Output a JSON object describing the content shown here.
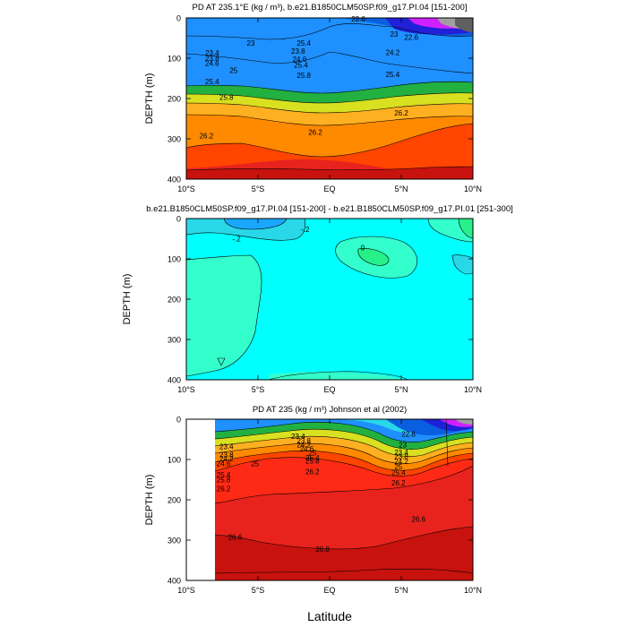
{
  "figure": {
    "xlabel": "Latitude",
    "colors": {
      "zone_a": "#1e90ff",
      "zone_b": "#ff4500",
      "zone_c": "#e8231d",
      "zone_d": "#c8120e",
      "zone_e": "#00ffff",
      "zone_f": "#33ffcc",
      "zone_g": "#26f08a"
    }
  },
  "chart_data": [
    {
      "type": "heatmap",
      "title": "PD AT 235.1°E (kg / m³), b.e21.B1850CLM50SP.f09_g17.PI.04 [151-200]",
      "ylabel": "DEPTH (m)",
      "xlim": [
        -10,
        10
      ],
      "ylim": [
        400,
        0
      ],
      "x_ticks": [
        -10,
        -5,
        0,
        5,
        10
      ],
      "x_tick_labels": [
        "10°S",
        "5°S",
        "EQ",
        "5°N",
        "10°N"
      ],
      "y_ticks": [
        0,
        100,
        200,
        300,
        400
      ],
      "y_tick_labels": [
        "0",
        "100",
        "200",
        "300",
        "400"
      ],
      "contour_labels": [
        {
          "x": -5.5,
          "y": 62,
          "text": "23"
        },
        {
          "x": -8.2,
          "y": 87,
          "text": "23.4"
        },
        {
          "x": -8.2,
          "y": 100,
          "text": "23.8"
        },
        {
          "x": -8.2,
          "y": 112,
          "text": "24.6"
        },
        {
          "x": -6.7,
          "y": 130,
          "text": "25"
        },
        {
          "x": -8.2,
          "y": 158,
          "text": "25.4"
        },
        {
          "x": -7.2,
          "y": 197,
          "text": "25.8"
        },
        {
          "x": -1.8,
          "y": 62,
          "text": "25.4"
        },
        {
          "x": -2.2,
          "y": 82,
          "text": "23.8"
        },
        {
          "x": -2.1,
          "y": 102,
          "text": "24.6"
        },
        {
          "x": -2.0,
          "y": 117,
          "text": "25.4"
        },
        {
          "x": -1.8,
          "y": 142,
          "text": "25.8"
        },
        {
          "x": 4.4,
          "y": 85,
          "text": "24.2"
        },
        {
          "x": 4.4,
          "y": 140,
          "text": "25.4"
        },
        {
          "x": 4.5,
          "y": 40,
          "text": "23"
        },
        {
          "x": 5.7,
          "y": 48,
          "text": "22.6"
        },
        {
          "x": 2.0,
          "y": 2,
          "text": "22.6"
        },
        {
          "x": 5.0,
          "y": 235,
          "text": "26.2"
        },
        {
          "x": -8.6,
          "y": 292,
          "text": "26.2"
        },
        {
          "x": -1.0,
          "y": 283,
          "text": "26.2"
        }
      ],
      "color_regions": [
        {
          "color": "#1e90ff"
        },
        {
          "color": "#ff4500"
        },
        {
          "color": "#e8231d"
        }
      ]
    },
    {
      "type": "heatmap",
      "title": "b.e21.B1850CLM50SP.f09_g17.PI.04 [151-200] - b.e21.B1850CLM50SP.f09_g17.PI.01 [251-300]",
      "ylabel": "DEPTH (m)",
      "xlim": [
        -10,
        10
      ],
      "ylim": [
        400,
        0
      ],
      "x_ticks": [
        -10,
        -5,
        0,
        5,
        10
      ],
      "x_tick_labels": [
        "10°S",
        "5°S",
        "EQ",
        "5°N",
        "10°N"
      ],
      "y_ticks": [
        0,
        100,
        200,
        300,
        400
      ],
      "y_tick_labels": [
        "0",
        "100",
        "200",
        "300",
        "400"
      ],
      "contour_labels": [
        {
          "x": -6.5,
          "y": 50,
          "text": "-.2"
        },
        {
          "x": -1.7,
          "y": 27,
          "text": "-.2"
        },
        {
          "x": 2.3,
          "y": 72,
          "text": "0"
        }
      ],
      "color_regions": [
        {
          "color": "#00ffff"
        },
        {
          "color": "#33ffcc"
        },
        {
          "color": "#26f08a"
        }
      ]
    },
    {
      "type": "heatmap",
      "title": "PD AT 235 (kg / m³) Johnson et al (2002)",
      "ylabel": "DEPTH (m)",
      "xlim": [
        -10,
        10
      ],
      "ylim": [
        400,
        0
      ],
      "x_ticks": [
        -10,
        -5,
        0,
        5,
        10
      ],
      "x_tick_labels": [
        "10°S",
        "5°S",
        "EQ",
        "5°N",
        "10°N"
      ],
      "y_ticks": [
        0,
        100,
        200,
        300,
        400
      ],
      "y_tick_labels": [
        "0",
        "100",
        "200",
        "300",
        "400"
      ],
      "data_xlim": [
        -8,
        10
      ],
      "contour_labels": [
        {
          "x": -2.2,
          "y": 42,
          "text": "23.4"
        },
        {
          "x": -1.8,
          "y": 53,
          "text": "23.8"
        },
        {
          "x": -1.8,
          "y": 63,
          "text": "24.2"
        },
        {
          "x": -1.6,
          "y": 73,
          "text": "24.6"
        },
        {
          "x": -1.2,
          "y": 83,
          "text": "25"
        },
        {
          "x": -1.2,
          "y": 95,
          "text": "25.4"
        },
        {
          "x": -1.2,
          "y": 103,
          "text": "25.8"
        },
        {
          "x": -7.2,
          "y": 68,
          "text": "23.4"
        },
        {
          "x": -7.2,
          "y": 88,
          "text": "23.8"
        },
        {
          "x": -7.2,
          "y": 98,
          "text": "24.2"
        },
        {
          "x": -7.4,
          "y": 110,
          "text": "24.6"
        },
        {
          "x": -5.2,
          "y": 110,
          "text": "25"
        },
        {
          "x": -7.4,
          "y": 138,
          "text": "25.4"
        },
        {
          "x": -7.4,
          "y": 150,
          "text": "25.8"
        },
        {
          "x": -7.4,
          "y": 172,
          "text": "26.2"
        },
        {
          "x": -1.2,
          "y": 130,
          "text": "26.2"
        },
        {
          "x": 5.5,
          "y": 37,
          "text": "22.6"
        },
        {
          "x": 5.1,
          "y": 63,
          "text": "23"
        },
        {
          "x": 5.0,
          "y": 82,
          "text": "23.4"
        },
        {
          "x": 5.0,
          "y": 92,
          "text": "23.8"
        },
        {
          "x": 5.0,
          "y": 104,
          "text": "24.2"
        },
        {
          "x": 4.8,
          "y": 118,
          "text": "25"
        },
        {
          "x": 4.8,
          "y": 132,
          "text": "25.4"
        },
        {
          "x": 4.8,
          "y": 158,
          "text": "26.2"
        },
        {
          "x": 6.2,
          "y": 248,
          "text": "26.6"
        },
        {
          "x": -6.6,
          "y": 292,
          "text": "26.6"
        },
        {
          "x": -0.5,
          "y": 322,
          "text": "26.8"
        }
      ],
      "color_regions": [
        {
          "color": "#e8231d"
        },
        {
          "color": "#c8120e"
        }
      ]
    }
  ]
}
